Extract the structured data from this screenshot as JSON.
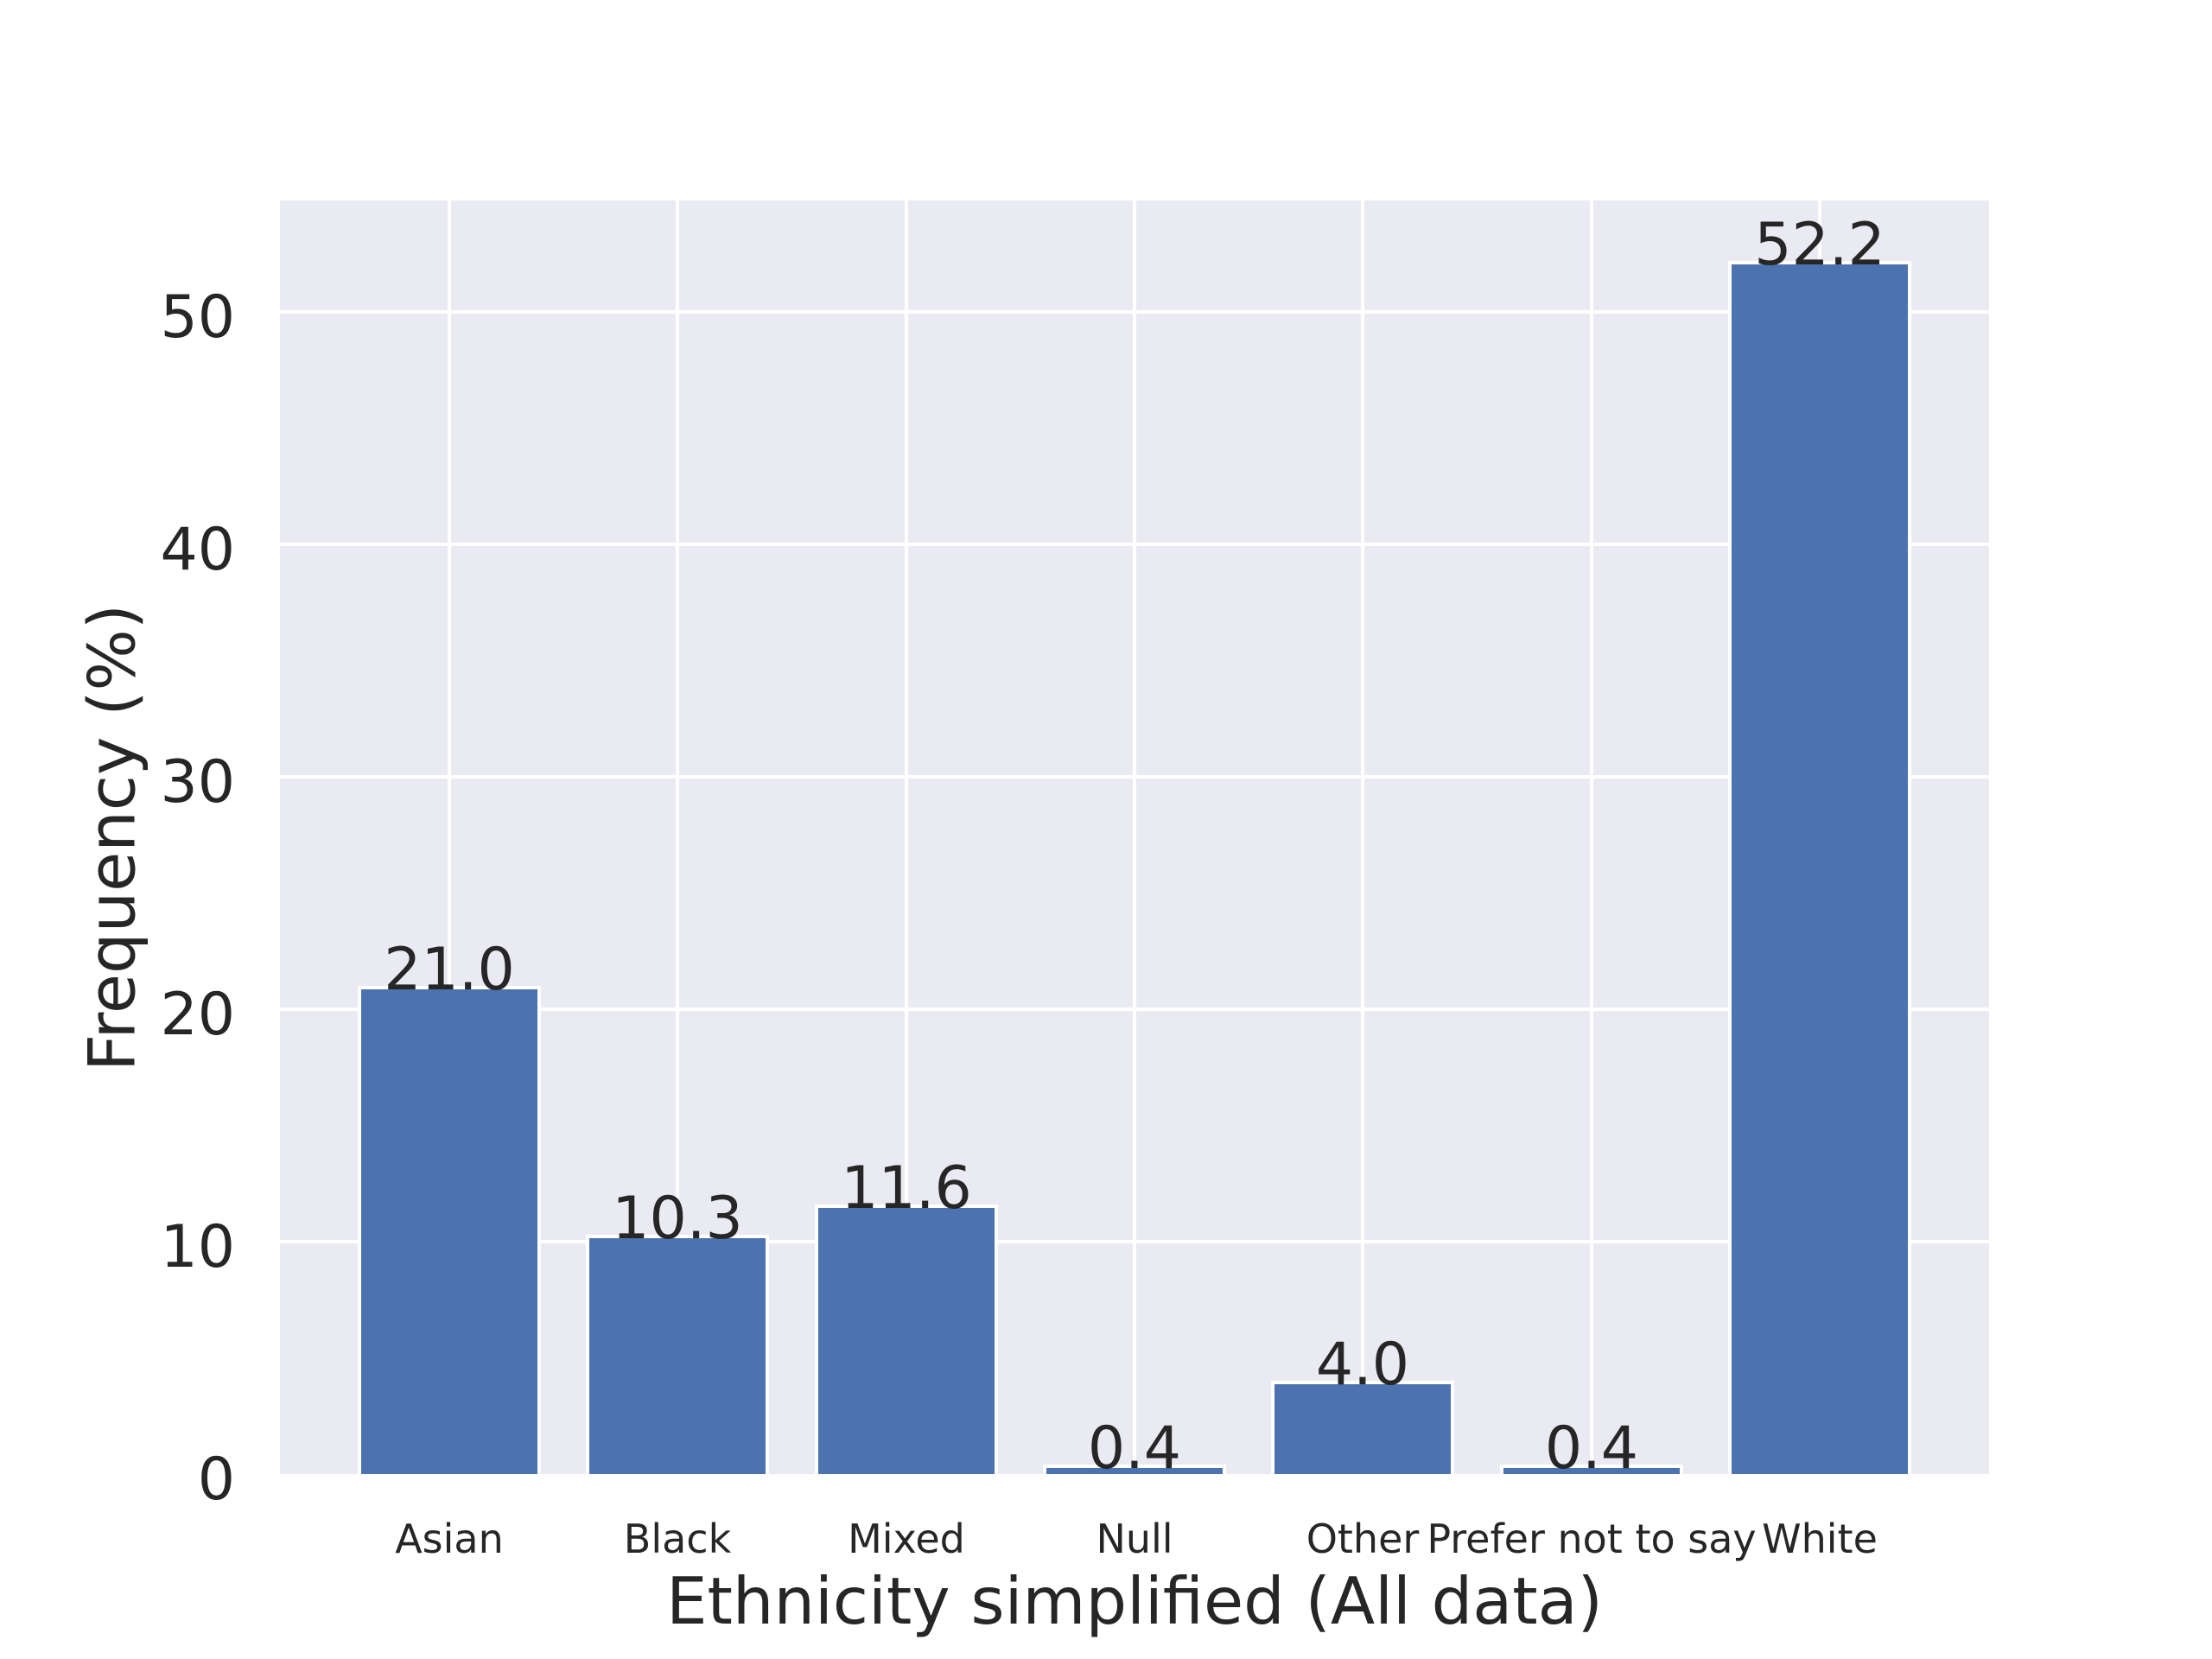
{
  "figure": {
    "background_color": "#ffffff",
    "plot_background_color": "#eaeaf2",
    "grid_color": "#ffffff",
    "text_color": "#262626",
    "bar_color": "#4c72b0",
    "bar_edge_color": "#ffffff"
  },
  "chart_data": {
    "type": "bar",
    "title": "",
    "xlabel": "Ethnicity simplified (All data)",
    "ylabel": "Frequency (%)",
    "categories": [
      "Asian",
      "Black",
      "Mixed",
      "Null",
      "Other",
      "Prefer not to say",
      "White"
    ],
    "values": [
      21.0,
      10.3,
      11.6,
      0.4,
      4.0,
      0.4,
      52.2
    ],
    "value_labels": [
      "21.0",
      "10.3",
      "11.6",
      "0.4",
      "4.0",
      "0.4",
      "52.2"
    ],
    "yticks": [
      0,
      10,
      20,
      30,
      40,
      50
    ],
    "ytick_labels": [
      "0",
      "10",
      "20",
      "30",
      "40",
      "50"
    ],
    "ylim": [
      0,
      54.8
    ],
    "grid": "on",
    "legend": "none",
    "bar_width_fraction": 0.8
  }
}
